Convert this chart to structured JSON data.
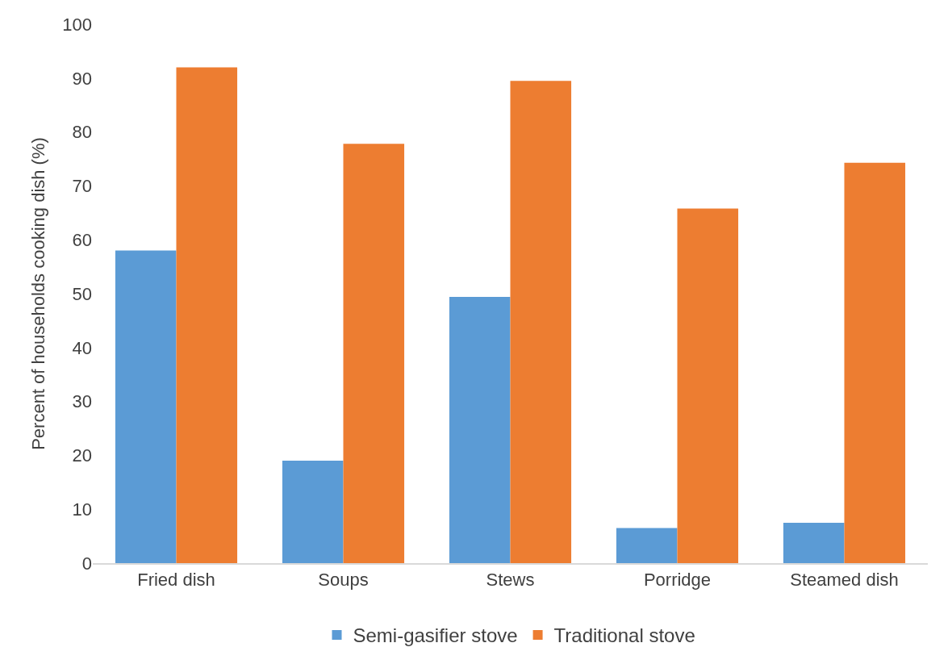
{
  "chart_data": {
    "type": "bar",
    "ylabel": "Percent of households cooking dish (%)",
    "categories": [
      "Fried dish",
      "Soups",
      "Stews",
      "Porridge",
      "Steamed dish"
    ],
    "series": [
      {
        "name": "Semi-gasifier stove",
        "color": "#5b9bd5",
        "values": [
          58,
          19,
          49.4,
          6.5,
          7.5
        ]
      },
      {
        "name": "Traditional stove",
        "color": "#ed7d31",
        "values": [
          92,
          77.8,
          89.5,
          65.8,
          74.3
        ]
      }
    ],
    "ylim": [
      0,
      100
    ],
    "yticks": [
      0,
      10,
      20,
      30,
      40,
      50,
      60,
      70,
      80,
      90,
      100
    ],
    "grid": false,
    "legend": "bottom"
  }
}
